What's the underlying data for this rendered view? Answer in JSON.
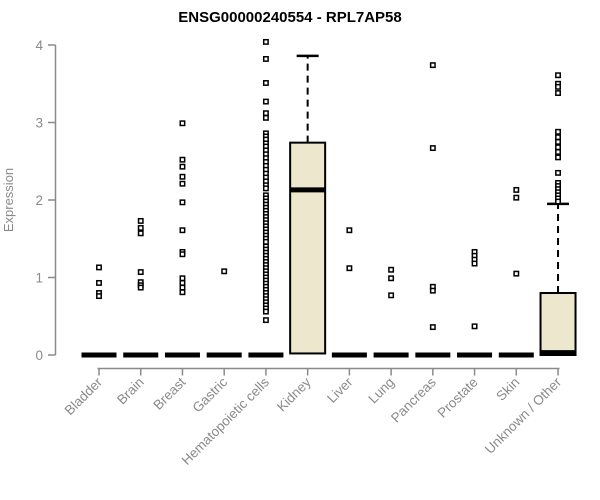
{
  "chart_data": {
    "type": "boxplot",
    "title": "ENSG00000240554 - RPL7AP58",
    "ylabel": "Expression",
    "xlabel": "",
    "ylim": [
      0,
      4
    ],
    "yticks": [
      "0",
      "1",
      "2",
      "3",
      "4"
    ],
    "grid": false,
    "legend": "none",
    "axis_color": "#8a8a8a",
    "box_fill_color": "#ece7cd",
    "box_stroke_color": "#000000",
    "categories": [
      "Bladder",
      "Brain",
      "Breast",
      "Gastric",
      "Hematopoietic cells",
      "Kidney",
      "Liver",
      "Lung",
      "Pancreas",
      "Prostate",
      "Skin",
      "Unknown / Other"
    ],
    "boxes": [
      {
        "category": "Bladder",
        "whisker_low": 0,
        "q1": 0,
        "median": 0,
        "q3": 0,
        "whisker_high": 0,
        "outliers": [
          1.13,
          0.93,
          0.8,
          0.76
        ]
      },
      {
        "category": "Brain",
        "whisker_low": 0,
        "q1": 0,
        "median": 0,
        "q3": 0,
        "whisker_high": 0,
        "outliers": [
          1.73,
          1.64,
          1.57,
          1.07,
          0.94,
          0.9,
          0.87
        ]
      },
      {
        "category": "Breast",
        "whisker_low": 0,
        "q1": 0,
        "median": 0,
        "q3": 0,
        "whisker_high": 0,
        "outliers": [
          2.99,
          2.52,
          2.43,
          2.3,
          2.21,
          1.97,
          1.61,
          1.33,
          1.3,
          0.99,
          0.93,
          0.87,
          0.81
        ]
      },
      {
        "category": "Gastric",
        "whisker_low": 0,
        "q1": 0,
        "median": 0,
        "q3": 0,
        "whisker_high": 0,
        "outliers": [
          1.08
        ]
      },
      {
        "category": "Hematopoietic cells",
        "whisker_low": 0,
        "q1": 0,
        "median": 0,
        "q3": 0,
        "whisker_high": 0,
        "outliers": [
          4.04,
          3.82,
          3.51,
          3.27,
          3.12,
          3.06,
          2.86,
          2.82,
          2.78,
          2.73,
          2.69,
          2.64,
          2.59,
          2.54,
          2.49,
          2.44,
          2.39,
          2.34,
          2.29,
          2.24,
          2.19,
          2.15,
          2.06,
          2.02,
          1.98,
          1.94,
          1.9,
          1.86,
          1.82,
          1.78,
          1.74,
          1.7,
          1.66,
          1.62,
          1.58,
          1.54,
          1.5,
          1.46,
          1.4,
          1.36,
          1.32,
          1.28,
          1.24,
          1.2,
          1.16,
          1.12,
          1.08,
          1.04,
          1.0,
          0.96,
          0.92,
          0.88,
          0.84,
          0.8,
          0.76,
          0.72,
          0.68,
          0.64,
          0.6,
          0.56,
          0.45
        ]
      },
      {
        "category": "Kidney",
        "whisker_low": 0,
        "q1": 0.02,
        "median": 2.13,
        "q3": 2.74,
        "whisker_high": 3.86,
        "outliers": []
      },
      {
        "category": "Liver",
        "whisker_low": 0,
        "q1": 0,
        "median": 0,
        "q3": 0,
        "whisker_high": 0,
        "outliers": [
          1.61,
          1.12
        ]
      },
      {
        "category": "Lung",
        "whisker_low": 0,
        "q1": 0,
        "median": 0,
        "q3": 0,
        "whisker_high": 0,
        "outliers": [
          1.1,
          0.99,
          0.77
        ]
      },
      {
        "category": "Pancreas",
        "whisker_low": 0,
        "q1": 0,
        "median": 0,
        "q3": 0,
        "whisker_high": 0,
        "outliers": [
          3.74,
          2.67,
          0.88,
          0.83,
          0.36
        ]
      },
      {
        "category": "Prostate",
        "whisker_low": 0,
        "q1": 0,
        "median": 0,
        "q3": 0,
        "whisker_high": 0,
        "outliers": [
          1.33,
          1.28,
          1.23,
          1.18,
          0.37
        ]
      },
      {
        "category": "Skin",
        "whisker_low": 0,
        "q1": 0,
        "median": 0,
        "q3": 0,
        "whisker_high": 0,
        "outliers": [
          2.13,
          2.03,
          1.05
        ]
      },
      {
        "category": "Unknown / Other",
        "whisker_low": 0,
        "q1": 0,
        "median": 0.03,
        "q3": 0.8,
        "whisker_high": 1.95,
        "outliers": [
          3.61,
          3.5,
          3.46,
          3.38,
          2.88,
          2.81,
          2.75,
          2.68,
          2.62,
          2.55,
          2.35,
          2.22,
          2.18,
          2.14,
          2.1,
          2.06,
          2.02,
          1.98
        ]
      }
    ]
  }
}
